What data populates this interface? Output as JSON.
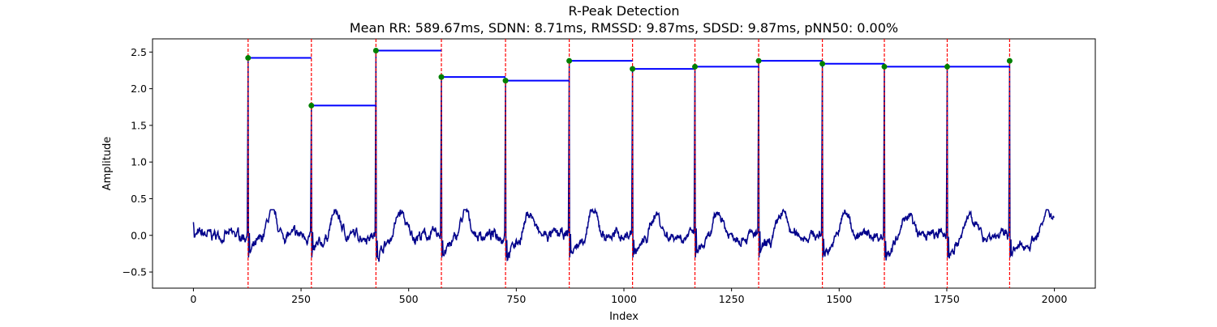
{
  "chart_data": {
    "type": "line",
    "title": "R-Peak Detection",
    "subtitle": "Mean RR: 589.67ms, SDNN: 8.71ms, RMSSD: 9.87ms, SDSD: 9.87ms, pNN50: 0.00%",
    "xlabel": "Index",
    "ylabel": "Amplitude",
    "xlim": [
      -95,
      2095
    ],
    "ylim": [
      -0.72,
      2.68
    ],
    "xticks": [
      0,
      250,
      500,
      750,
      1000,
      1250,
      1500,
      1750,
      2000
    ],
    "xtick_labels": [
      "0",
      "250",
      "500",
      "750",
      "1000",
      "1250",
      "1500",
      "1750",
      "2000"
    ],
    "yticks": [
      -0.5,
      0.0,
      0.5,
      1.0,
      1.5,
      2.0,
      2.5
    ],
    "ytick_labels": [
      "−0.5",
      "0.0",
      "0.5",
      "1.0",
      "1.5",
      "2.0",
      "2.5"
    ],
    "grid": false,
    "legend": "none",
    "colors": {
      "signal": "#00008b",
      "peak_lines": "#ff0000",
      "rr_segments": "#0000ff",
      "peak_markers": "#008000"
    },
    "signal": {
      "n_samples": 2000,
      "baseline_range": [
        -0.55,
        0.35
      ]
    },
    "peaks": {
      "x": [
        127,
        274,
        424,
        576,
        725,
        873,
        1020,
        1165,
        1313,
        1461,
        1605,
        1751,
        1896
      ],
      "y": [
        2.42,
        1.77,
        2.52,
        2.16,
        2.11,
        2.38,
        2.27,
        2.3,
        2.38,
        2.34,
        2.3,
        2.3,
        2.38
      ]
    },
    "rr_segments": [
      {
        "x_start": 127,
        "x_end": 274,
        "y": 2.42
      },
      {
        "x_start": 274,
        "x_end": 424,
        "y": 1.77
      },
      {
        "x_start": 424,
        "x_end": 576,
        "y": 2.52
      },
      {
        "x_start": 576,
        "x_end": 725,
        "y": 2.16
      },
      {
        "x_start": 725,
        "x_end": 873,
        "y": 2.11
      },
      {
        "x_start": 873,
        "x_end": 1020,
        "y": 2.38
      },
      {
        "x_start": 1020,
        "x_end": 1165,
        "y": 2.27
      },
      {
        "x_start": 1165,
        "x_end": 1313,
        "y": 2.3
      },
      {
        "x_start": 1313,
        "x_end": 1461,
        "y": 2.38
      },
      {
        "x_start": 1461,
        "x_end": 1605,
        "y": 2.34
      },
      {
        "x_start": 1605,
        "x_end": 1751,
        "y": 2.3
      },
      {
        "x_start": 1751,
        "x_end": 1896,
        "y": 2.3
      }
    ]
  }
}
